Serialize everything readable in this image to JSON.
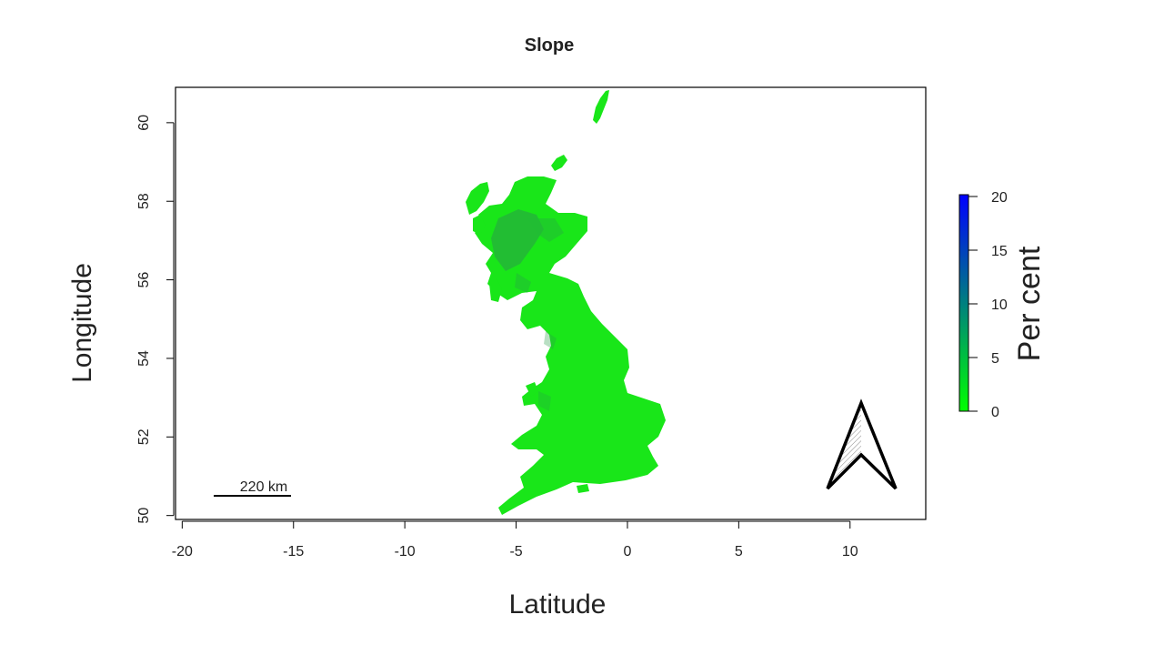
{
  "title": "Slope",
  "x_axis": {
    "label": "Latitude",
    "range": [
      -20.3,
      13.4
    ],
    "ticks": [
      -20,
      -15,
      -10,
      -5,
      0,
      5,
      10
    ],
    "tick_labels": [
      "-20",
      "-15",
      "-10",
      "-5",
      "0",
      "5",
      "10"
    ]
  },
  "y_axis": {
    "label": "Longitude",
    "range": [
      49.9,
      60.9
    ],
    "ticks": [
      50,
      52,
      54,
      56,
      58,
      60
    ],
    "tick_labels": [
      "50",
      "52",
      "54",
      "56",
      "58",
      "60"
    ]
  },
  "legend": {
    "title": "Per cent",
    "range": [
      0,
      20
    ],
    "ticks": [
      0,
      5,
      10,
      15,
      20
    ],
    "tick_labels": [
      "0",
      "5",
      "10",
      "15",
      "20"
    ],
    "color_low": "#00ff00",
    "color_high": "#0000ff"
  },
  "scale_bar": {
    "label": "220 km"
  },
  "north_arrow": {
    "icon": "north-arrow-icon"
  },
  "colors": {
    "land": "#19e619",
    "land_dark": "#2a9c4a",
    "frame": "#000000"
  }
}
